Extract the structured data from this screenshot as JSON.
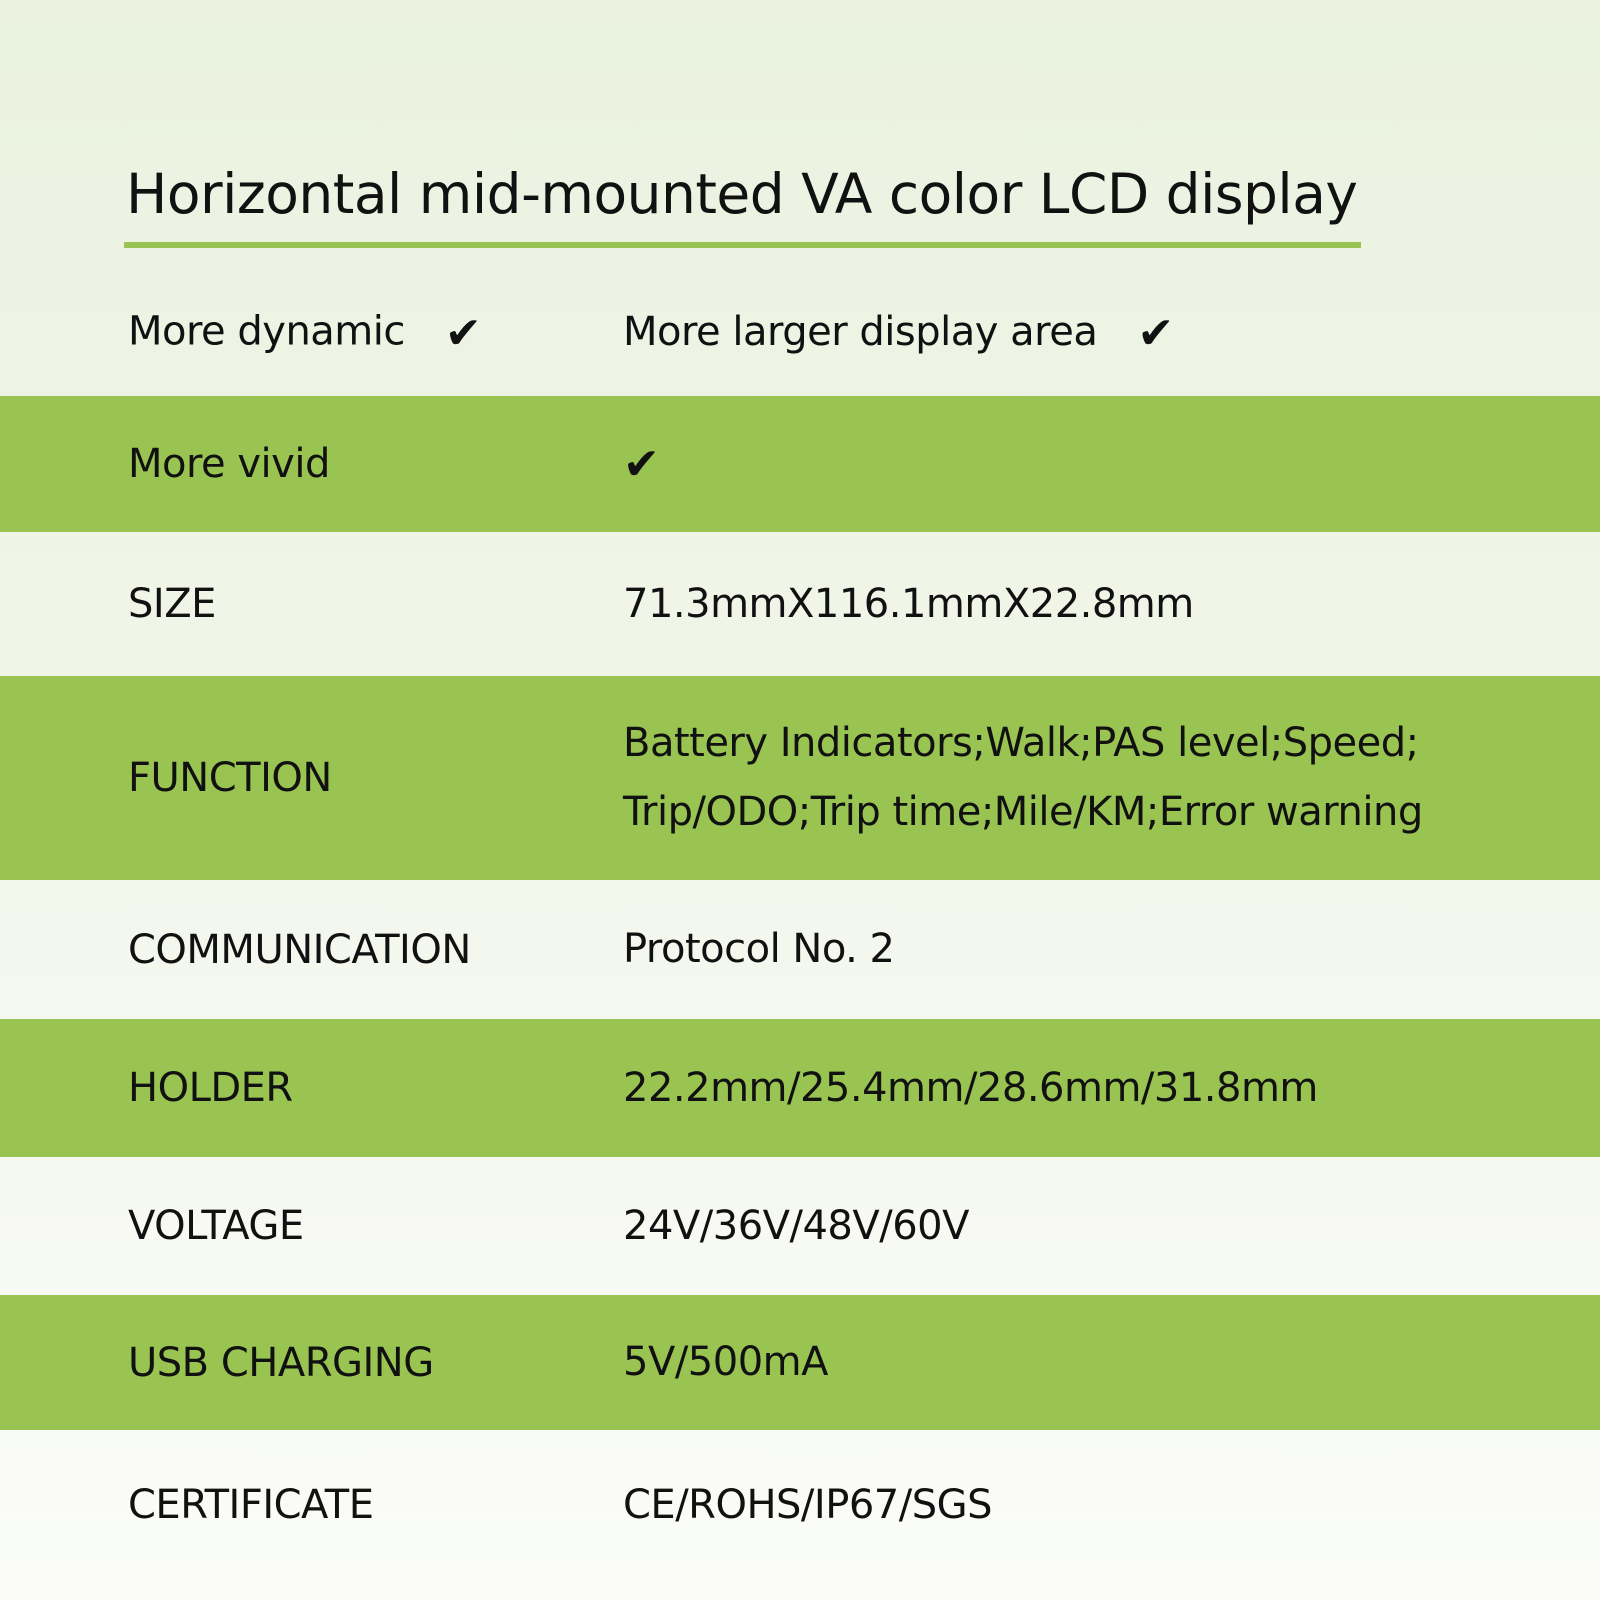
{
  "title": "Horizontal mid-mounted VA color LCD display",
  "colors": {
    "accent_green": "#99c452",
    "background": "#eef5e3"
  },
  "features": [
    {
      "label": "More dynamic",
      "icon": "checkmark-icon"
    },
    {
      "label": "More larger display area",
      "icon": "checkmark-icon"
    },
    {
      "label": "More vivid",
      "icon": "checkmark-icon"
    }
  ],
  "check_glyph": "✔",
  "specs": [
    {
      "label": "SIZE",
      "value": "71.3mmX116.1mmX22.8mm"
    },
    {
      "label": "FUNCTION",
      "value_lines": [
        "Battery Indicators;Walk;PAS level;Speed;",
        "Trip/ODO;Trip time;Mile/KM;Error warning"
      ]
    },
    {
      "label": "COMMUNICATION",
      "value": "Protocol No. 2"
    },
    {
      "label": "HOLDER",
      "value": "22.2mm/25.4mm/28.6mm/31.8mm"
    },
    {
      "label": "VOLTAGE",
      "value": "24V/36V/48V/60V"
    },
    {
      "label": "USB CHARGING",
      "value": "5V/500mA"
    },
    {
      "label": "CERTIFICATE",
      "value": "CE/ROHS/IP67/SGS"
    }
  ]
}
